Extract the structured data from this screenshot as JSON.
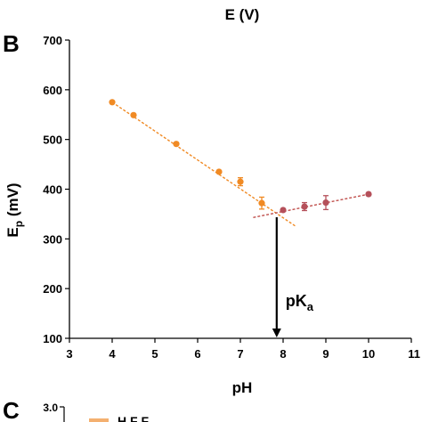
{
  "header": {
    "title": "E (V)"
  },
  "panel_b": {
    "label": "B"
  },
  "panel_c": {
    "label": "C",
    "tick_top": "3.0",
    "legend_text": "H F F"
  },
  "chart_data": {
    "type": "scatter",
    "xlabel": "pH",
    "ylabel_main": "E",
    "ylabel_sub": "p",
    "ylabel_unit": " (mV)",
    "xlim": [
      3,
      11
    ],
    "ylim": [
      100,
      700
    ],
    "x_ticks": [
      "3",
      "4",
      "5",
      "6",
      "7",
      "8",
      "9",
      "10",
      "11"
    ],
    "y_ticks": [
      "100",
      "200",
      "300",
      "400",
      "500",
      "600",
      "700"
    ],
    "grid": false,
    "annotation": {
      "text_main": "pK",
      "text_sub": "a",
      "x": 7.85
    },
    "series": [
      {
        "color": "#F08A24",
        "marker_color": "#F08A24",
        "x": [
          4,
          4.5,
          5.5,
          6.5,
          7,
          7.5
        ],
        "y": [
          575,
          549,
          491,
          435,
          415,
          372
        ],
        "err": [
          0,
          0,
          0,
          0,
          8,
          12
        ],
        "fit": {
          "x": [
            4,
            8.3
          ],
          "y": [
            575,
            325
          ]
        }
      },
      {
        "color": "#C0504D",
        "marker_color": "#B5505A",
        "x": [
          8,
          8.5,
          9,
          10
        ],
        "y": [
          358,
          365,
          373,
          390
        ],
        "err": [
          0,
          8,
          14,
          0
        ],
        "fit": {
          "x": [
            7.3,
            10
          ],
          "y": [
            343,
            390
          ]
        }
      }
    ]
  }
}
